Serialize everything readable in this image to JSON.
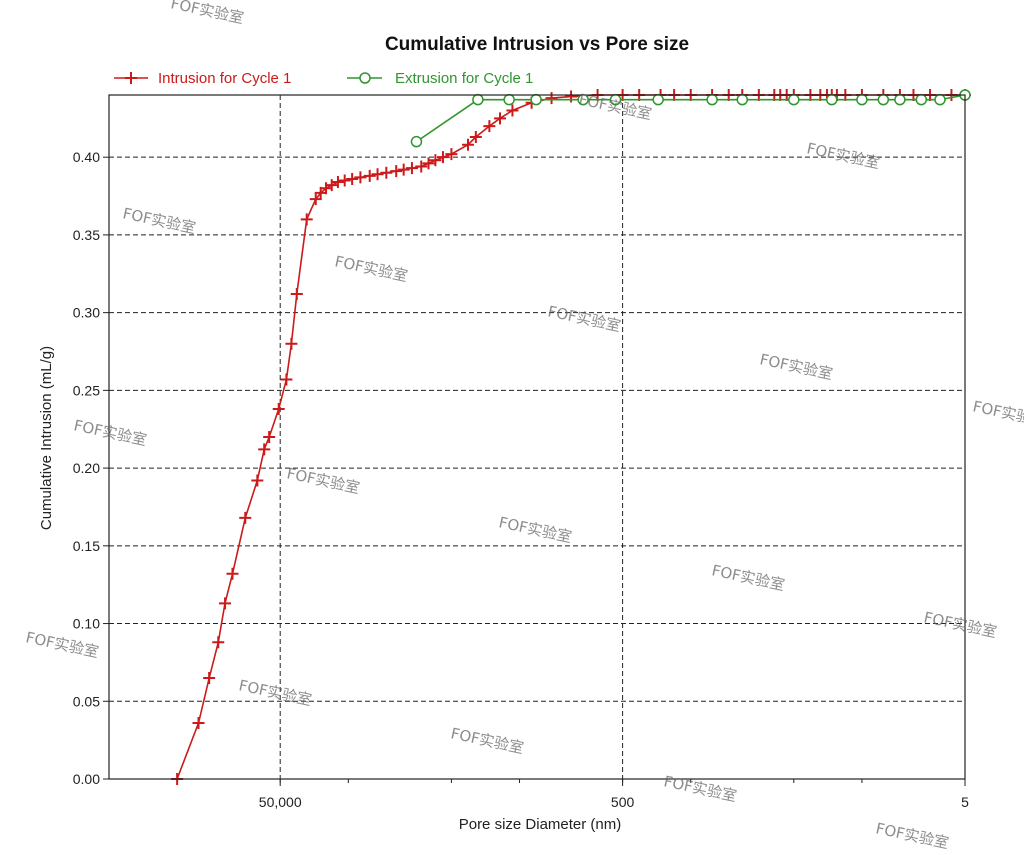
{
  "chart_data": {
    "type": "line",
    "title": "Cumulative Intrusion vs Pore size",
    "xlabel": "Pore size Diameter (nm)",
    "ylabel": "Cumulative Intrusion (mL/g)",
    "x_scale": "log-reversed",
    "xlim": [
      500000,
      5
    ],
    "ylim": [
      0,
      0.44
    ],
    "x_tick_values": [
      50000,
      500,
      5
    ],
    "x_tick_labels": [
      "50,000",
      "500",
      "5"
    ],
    "y_tick_values": [
      0,
      0.05,
      0.1,
      0.15,
      0.2,
      0.25,
      0.3,
      0.35,
      0.4
    ],
    "y_tick_labels": [
      "0.00",
      "0.05",
      "0.10",
      "0.15",
      "0.20",
      "0.25",
      "0.30",
      "0.35",
      "0.40"
    ],
    "grid": true,
    "legend_position": "top-left",
    "series": [
      {
        "name": "Intrusion for Cycle 1",
        "color": "#cc1a1a",
        "marker": "plus",
        "points": [
          [
            200000,
            0.0
          ],
          [
            150000,
            0.036
          ],
          [
            130000,
            0.065
          ],
          [
            115000,
            0.088
          ],
          [
            105000,
            0.113
          ],
          [
            95000,
            0.132
          ],
          [
            80000,
            0.168
          ],
          [
            68000,
            0.192
          ],
          [
            62000,
            0.212
          ],
          [
            58000,
            0.22
          ],
          [
            51000,
            0.238
          ],
          [
            46000,
            0.257
          ],
          [
            43000,
            0.28
          ],
          [
            40000,
            0.312
          ],
          [
            35000,
            0.36
          ],
          [
            31000,
            0.373
          ],
          [
            29000,
            0.377
          ],
          [
            27000,
            0.38
          ],
          [
            25000,
            0.382
          ],
          [
            23000,
            0.384
          ],
          [
            21000,
            0.385
          ],
          [
            19000,
            0.386
          ],
          [
            17000,
            0.387
          ],
          [
            15000,
            0.388
          ],
          [
            13500,
            0.389
          ],
          [
            12000,
            0.39
          ],
          [
            10500,
            0.391
          ],
          [
            9500,
            0.392
          ],
          [
            8500,
            0.393
          ],
          [
            7500,
            0.394
          ],
          [
            6800,
            0.396
          ],
          [
            6200,
            0.398
          ],
          [
            5600,
            0.4
          ],
          [
            5000,
            0.402
          ],
          [
            4000,
            0.408
          ],
          [
            3600,
            0.413
          ],
          [
            3000,
            0.42
          ],
          [
            2600,
            0.425
          ],
          [
            2200,
            0.43
          ],
          [
            1700,
            0.435
          ],
          [
            1300,
            0.438
          ],
          [
            1000,
            0.439
          ],
          [
            700,
            0.44
          ],
          [
            500,
            0.44
          ],
          [
            400,
            0.44
          ],
          [
            300,
            0.44
          ],
          [
            250,
            0.44
          ],
          [
            200,
            0.44
          ],
          [
            150,
            0.44
          ],
          [
            120,
            0.44
          ],
          [
            100,
            0.44
          ],
          [
            80,
            0.44
          ],
          [
            65,
            0.44
          ],
          [
            60,
            0.44
          ],
          [
            55,
            0.44
          ],
          [
            50,
            0.44
          ],
          [
            40,
            0.44
          ],
          [
            35,
            0.44
          ],
          [
            32,
            0.44
          ],
          [
            30,
            0.44
          ],
          [
            28,
            0.44
          ],
          [
            25,
            0.44
          ],
          [
            20,
            0.44
          ],
          [
            15,
            0.44
          ],
          [
            12,
            0.44
          ],
          [
            10,
            0.44
          ],
          [
            8,
            0.44
          ],
          [
            6,
            0.44
          ],
          [
            5,
            0.44
          ]
        ]
      },
      {
        "name": "Extrusion for Cycle 1",
        "color": "#2f962f",
        "marker": "circle",
        "points": [
          [
            8000,
            0.41
          ],
          [
            3500,
            0.437
          ],
          [
            2300,
            0.437
          ],
          [
            1600,
            0.437
          ],
          [
            850,
            0.437
          ],
          [
            550,
            0.437
          ],
          [
            310,
            0.437
          ],
          [
            150,
            0.437
          ],
          [
            100,
            0.437
          ],
          [
            50,
            0.437
          ],
          [
            30,
            0.437
          ],
          [
            20,
            0.437
          ],
          [
            15,
            0.437
          ],
          [
            12,
            0.437
          ],
          [
            9,
            0.437
          ],
          [
            7,
            0.437
          ],
          [
            5,
            0.44
          ]
        ]
      }
    ]
  },
  "watermark_text": "FOF实验室"
}
